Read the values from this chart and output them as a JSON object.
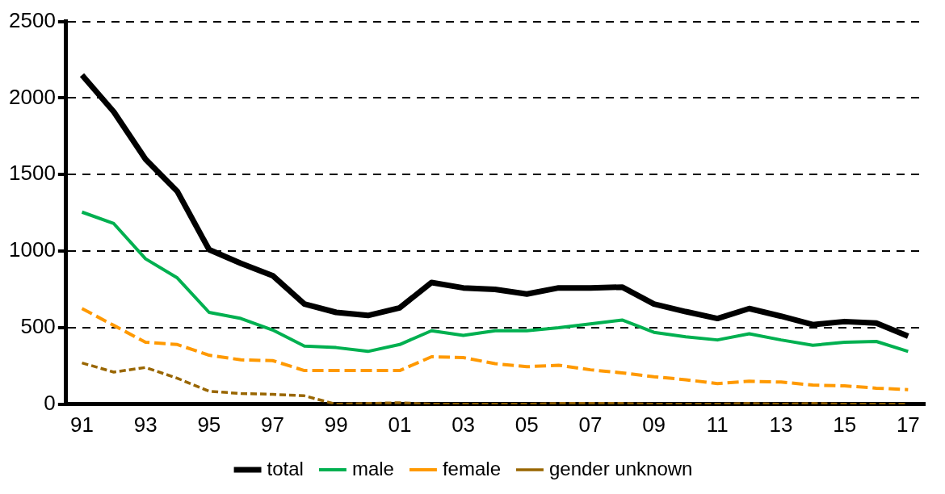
{
  "chart_data": {
    "type": "line",
    "categories": [
      "91",
      null,
      "93",
      null,
      "95",
      null,
      "97",
      null,
      "99",
      null,
      "01",
      null,
      "03",
      null,
      "05",
      null,
      "07",
      null,
      "09",
      null,
      "11",
      null,
      "13",
      null,
      "15",
      null,
      "17"
    ],
    "series": [
      {
        "name": "total",
        "color": "#000000",
        "line_style": "solid",
        "values": [
          2150,
          1910,
          1600,
          1390,
          1010,
          920,
          840,
          655,
          600,
          580,
          630,
          795,
          760,
          750,
          720,
          760,
          760,
          765,
          655,
          605,
          560,
          625,
          575,
          520,
          540,
          530,
          445
        ]
      },
      {
        "name": "male",
        "color": "#00b050",
        "line_style": "solid",
        "values": [
          1255,
          1180,
          950,
          825,
          600,
          560,
          485,
          380,
          370,
          345,
          390,
          480,
          450,
          480,
          480,
          500,
          525,
          550,
          470,
          440,
          420,
          460,
          420,
          385,
          405,
          410,
          345
        ]
      },
      {
        "name": "female",
        "color": "#ff9900",
        "line_style": "dashed",
        "values": [
          625,
          515,
          405,
          390,
          320,
          290,
          285,
          220,
          220,
          220,
          220,
          310,
          305,
          265,
          245,
          255,
          225,
          205,
          180,
          160,
          135,
          150,
          145,
          125,
          120,
          105,
          95
        ]
      },
      {
        "name": "gender unknown",
        "color": "#996600",
        "line_style": "dotted",
        "values": [
          270,
          210,
          240,
          170,
          85,
          70,
          65,
          55,
          0,
          5,
          10,
          0,
          0,
          0,
          0,
          5,
          5,
          5,
          0,
          0,
          0,
          5,
          0,
          5,
          0,
          0,
          0
        ]
      }
    ],
    "ylim": [
      0,
      2500
    ],
    "yticks": [
      0,
      500,
      1000,
      1500,
      2000,
      2500
    ],
    "grid": "y",
    "legend": "bottom",
    "marker": "none"
  }
}
